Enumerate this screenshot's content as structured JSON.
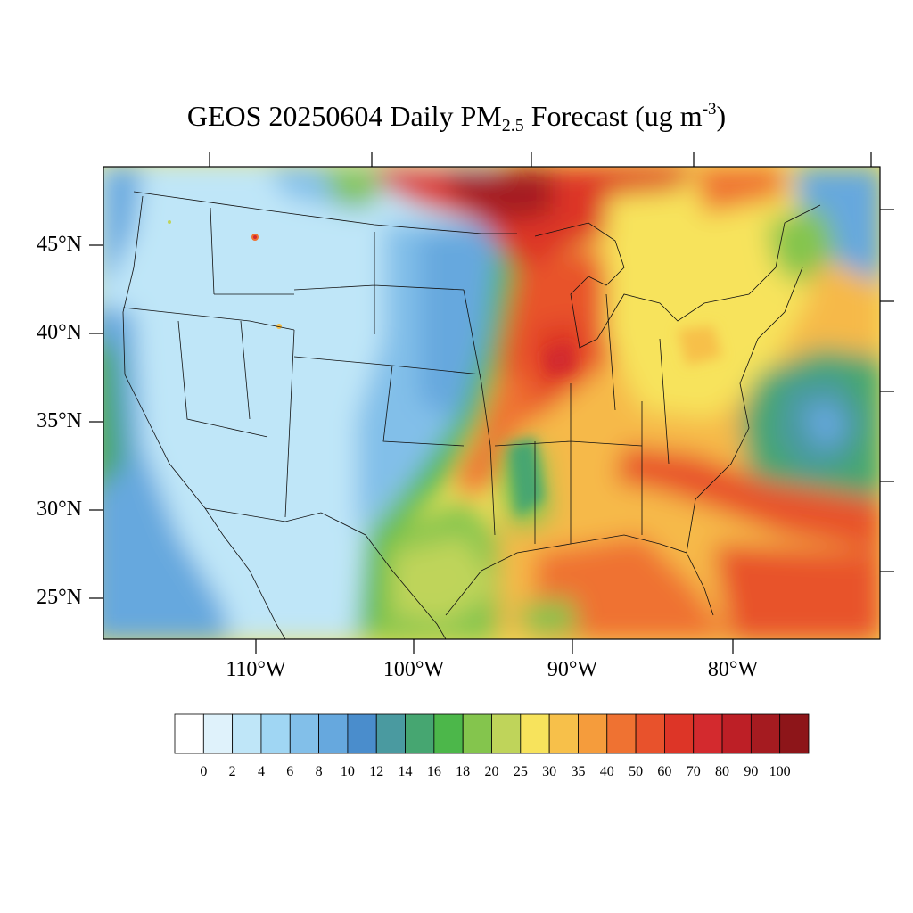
{
  "title": {
    "prefix": "GEOS 20250604 Daily PM",
    "subscript": "2.5",
    "middle": " Forecast (ug m",
    "superscript": "-3",
    "suffix": ")"
  },
  "map": {
    "projection": "lambert-conformal",
    "lat_labels": [
      "45°N",
      "40°N",
      "35°N",
      "30°N",
      "25°N"
    ],
    "lon_labels": [
      "110°W",
      "100°W",
      "90°W",
      "80°W"
    ],
    "field_description_regions": {
      "west": "light-blue",
      "plains": "blue",
      "east": "yellow-orange",
      "north_canada": "dark-red",
      "atlantic": "blue-green",
      "gulf": "orange-red"
    }
  },
  "colorbar": {
    "labels": [
      "0",
      "2",
      "4",
      "6",
      "8",
      "10",
      "12",
      "14",
      "16",
      "18",
      "20",
      "25",
      "30",
      "35",
      "40",
      "50",
      "60",
      "70",
      "80",
      "90",
      "100"
    ],
    "colors": [
      "#ffffff",
      "#dff2fb",
      "#bfe6f8",
      "#a0d6f3",
      "#82bfe9",
      "#66a8de",
      "#4a8dcc",
      "#4a9aa0",
      "#46a671",
      "#4cb74a",
      "#84c54d",
      "#bfd45a",
      "#f7e35c",
      "#f7c04a",
      "#f59c3c",
      "#ef7232",
      "#e8522c",
      "#dd3527",
      "#d32a2e",
      "#bd1f26",
      "#a51b20",
      "#8d1519"
    ]
  }
}
